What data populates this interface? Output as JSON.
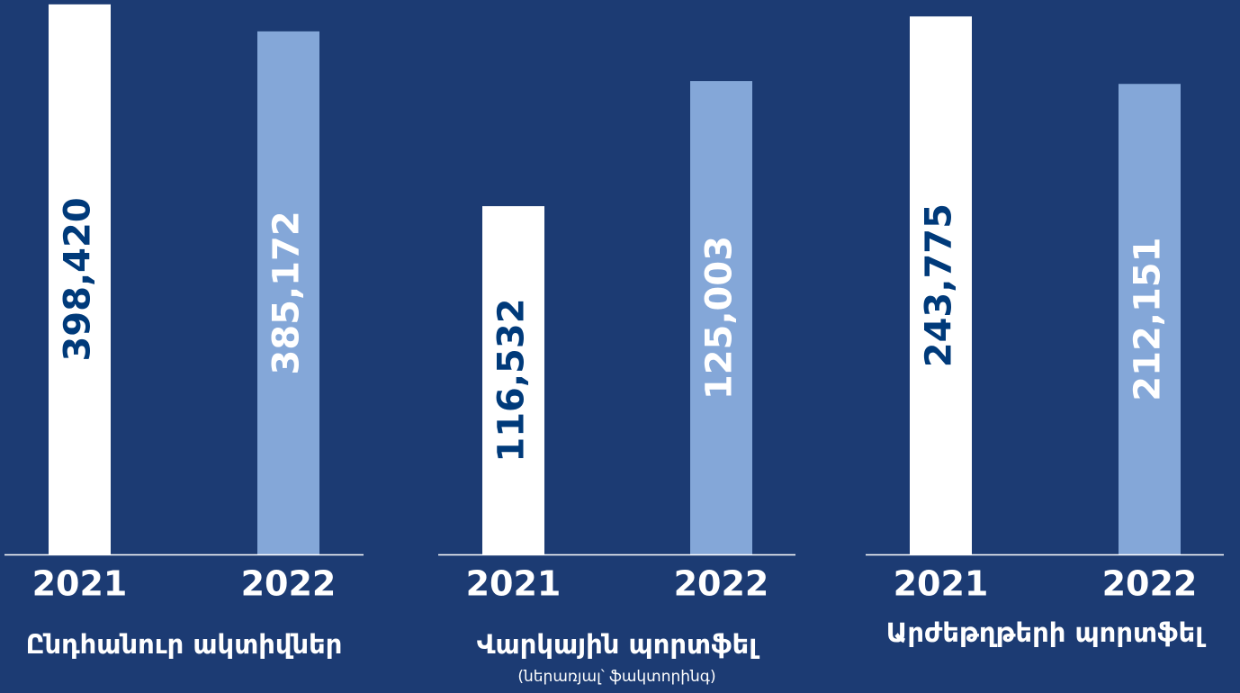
{
  "chart_data": [
    {
      "type": "bar",
      "title": "Ընդհանուր ակտիվներ",
      "categories": [
        "2021",
        "2022"
      ],
      "values": [
        398420,
        385172
      ],
      "value_labels": [
        "398,420",
        "385,172"
      ],
      "colors": [
        "#ffffff",
        "#84a7d8"
      ],
      "ylim": [
        128600,
        398800
      ]
    },
    {
      "type": "bar",
      "title": "Վարկային պորտֆել",
      "subtitle": "(ներառյալ՝ ֆակտորինգ)",
      "categories": [
        "2021",
        "2022"
      ],
      "values": [
        116532,
        125003
      ],
      "value_labels": [
        "116,532",
        "125,003"
      ],
      "colors": [
        "#ffffff",
        "#84a7d8"
      ],
      "ylim": [
        92950,
        130250
      ]
    },
    {
      "type": "bar",
      "title": "Արժեթղթերի պորտֆել",
      "categories": [
        "2021",
        "2022"
      ],
      "values": [
        243775,
        212151
      ],
      "value_labels": [
        "243,775",
        "212,151"
      ],
      "colors": [
        "#ffffff",
        "#84a7d8"
      ],
      "ylim": [
        -8400,
        249800
      ]
    }
  ]
}
